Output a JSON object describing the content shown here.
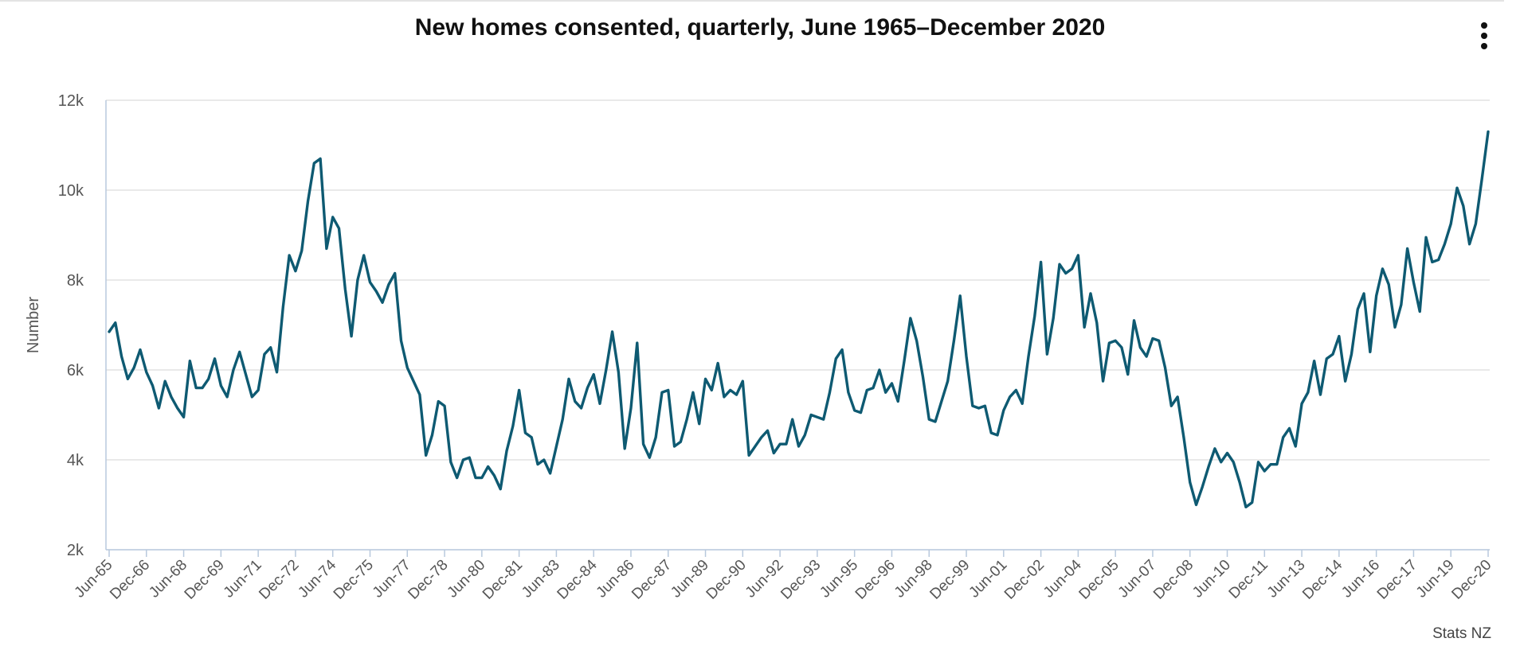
{
  "header": {
    "title": "New homes consented, quarterly, June 1965–December 2020"
  },
  "menu": {
    "icon": "more-vertical-icon"
  },
  "credit": "Stats NZ",
  "colors": {
    "line": "#0e5a72",
    "grid": "#dcdcdc",
    "axis": "#b8c9dd",
    "text": "#555555"
  },
  "chart_data": {
    "type": "line",
    "title": "New homes consented, quarterly, June 1965–December 2020",
    "xlabel": "",
    "ylabel": "Number",
    "ylim": [
      2000,
      12000
    ],
    "y_ticks": [
      2000,
      4000,
      6000,
      8000,
      10000,
      12000
    ],
    "y_tick_labels": [
      "2k",
      "4k",
      "6k",
      "8k",
      "10k",
      "12k"
    ],
    "x_tick_labels": [
      "Jun-65",
      "Dec-66",
      "Jun-68",
      "Dec-69",
      "Jun-71",
      "Dec-72",
      "Jun-74",
      "Dec-75",
      "Jun-77",
      "Dec-78",
      "Jun-80",
      "Dec-81",
      "Jun-83",
      "Dec-84",
      "Jun-86",
      "Dec-87",
      "Jun-89",
      "Dec-90",
      "Jun-92",
      "Dec-93",
      "Jun-95",
      "Dec-96",
      "Jun-98",
      "Dec-99",
      "Jun-01",
      "Dec-02",
      "Jun-04",
      "Dec-05",
      "Jun-07",
      "Dec-08",
      "Jun-10",
      "Dec-11",
      "Jun-13",
      "Dec-14",
      "Jun-16",
      "Dec-17",
      "Jun-19",
      "Dec-20"
    ],
    "grid": true,
    "legend": "none",
    "series": [
      {
        "color": "#0e5a72",
        "values": [
          6850,
          7050,
          6300,
          5800,
          6050,
          6450,
          5950,
          5650,
          5150,
          5750,
          5400,
          5150,
          4950,
          6200,
          5600,
          5600,
          5800,
          6250,
          5650,
          5400,
          6000,
          6400,
          5900,
          5400,
          5550,
          6350,
          6500,
          5950,
          7400,
          8550,
          8200,
          8650,
          9750,
          10600,
          10700,
          8700,
          9400,
          9150,
          7800,
          6750,
          8000,
          8550,
          7950,
          7750,
          7500,
          7900,
          8150,
          6650,
          6050,
          5750,
          5450,
          4100,
          4550,
          5300,
          5200,
          3950,
          3600,
          4000,
          4050,
          3600,
          3600,
          3850,
          3650,
          3350,
          4200,
          4750,
          5550,
          4600,
          4500,
          3900,
          4000,
          3700,
          4300,
          4900,
          5800,
          5300,
          5150,
          5600,
          5900,
          5250,
          6000,
          6850,
          5950,
          4250,
          5150,
          6600,
          4350,
          4050,
          4500,
          5500,
          5550,
          4300,
          4400,
          4900,
          5500,
          4800,
          5800,
          5550,
          6150,
          5400,
          5550,
          5450,
          5750,
          4100,
          4300,
          4500,
          4650,
          4150,
          4350,
          4350,
          4900,
          4300,
          4550,
          5000,
          4950,
          4900,
          5500,
          6250,
          6450,
          5500,
          5100,
          5050,
          5550,
          5600,
          6000,
          5500,
          5700,
          5300,
          6200,
          7150,
          6650,
          5850,
          4900,
          4850,
          5300,
          5750,
          6650,
          7650,
          6300,
          5200,
          5150,
          5200,
          4600,
          4550,
          5100,
          5400,
          5550,
          5250,
          6300,
          7200,
          8400,
          6350,
          7150,
          8350,
          8150,
          8250,
          8550,
          6950,
          7700,
          7050,
          5750,
          6600,
          6650,
          6500,
          5900,
          7100,
          6500,
          6300,
          6700,
          6650,
          6050,
          5200,
          5400,
          4500,
          3500,
          3000,
          3400,
          3850,
          4250,
          3950,
          4150,
          3950,
          3500,
          2950,
          3050,
          3950,
          3750,
          3900,
          3900,
          4500,
          4700,
          4300,
          5250,
          5500,
          6200,
          5450,
          6250,
          6350,
          6750,
          5750,
          6350,
          7350,
          7700,
          6400,
          7650,
          8250,
          7900,
          6950,
          7450,
          8700,
          7950,
          7300,
          8950,
          8400,
          8450,
          8800,
          9250,
          10050,
          9650,
          8800,
          9250,
          10250,
          11300
        ]
      }
    ]
  }
}
